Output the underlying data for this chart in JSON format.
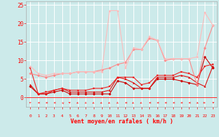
{
  "x": [
    0,
    1,
    2,
    3,
    4,
    5,
    6,
    7,
    8,
    9,
    10,
    11,
    12,
    13,
    14,
    15,
    16,
    17,
    18,
    19,
    20,
    21,
    22,
    23
  ],
  "series": [
    {
      "y": [
        3.0,
        1.0,
        1.0,
        1.5,
        2.0,
        1.0,
        1.0,
        1.0,
        1.0,
        1.0,
        1.0,
        4.5,
        4.0,
        2.5,
        2.5,
        2.5,
        5.0,
        5.0,
        5.0,
        4.5,
        4.0,
        3.5,
        11.0,
        8.0
      ],
      "color": "#cc0000",
      "lw": 0.8,
      "marker": "D",
      "ms": 1.8
    },
    {
      "y": [
        3.5,
        1.0,
        1.0,
        2.0,
        2.5,
        1.5,
        1.5,
        1.5,
        1.5,
        1.5,
        2.0,
        5.5,
        5.0,
        4.0,
        2.5,
        2.5,
        5.5,
        5.5,
        5.5,
        6.0,
        5.5,
        4.0,
        3.0,
        8.5
      ],
      "color": "#dd1111",
      "lw": 0.8,
      "marker": "^",
      "ms": 1.8
    },
    {
      "y": [
        8.0,
        1.0,
        1.5,
        2.0,
        2.5,
        2.0,
        2.0,
        2.0,
        2.5,
        2.5,
        3.0,
        5.5,
        5.5,
        5.5,
        3.5,
        4.0,
        6.0,
        6.0,
        6.0,
        7.0,
        6.5,
        5.5,
        8.5,
        9.0
      ],
      "color": "#ee2222",
      "lw": 0.8,
      "marker": "s",
      "ms": 1.8
    },
    {
      "y": [
        6.5,
        6.0,
        5.5,
        6.0,
        6.5,
        6.5,
        7.0,
        7.0,
        7.0,
        7.5,
        8.0,
        9.0,
        9.5,
        13.0,
        13.0,
        16.0,
        15.5,
        10.0,
        10.5,
        10.5,
        10.5,
        3.5,
        13.5,
        19.5
      ],
      "color": "#ff8888",
      "lw": 0.8,
      "marker": "D",
      "ms": 1.8
    },
    {
      "y": [
        8.5,
        6.5,
        6.0,
        6.5,
        6.5,
        6.5,
        7.0,
        7.0,
        7.0,
        7.0,
        23.5,
        23.5,
        8.0,
        13.5,
        13.0,
        16.5,
        15.5,
        10.5,
        10.5,
        10.5,
        10.5,
        11.0,
        23.0,
        19.5
      ],
      "color": "#ffbbbb",
      "lw": 0.8,
      "marker": "D",
      "ms": 1.5
    }
  ],
  "xlabel": "Vent moyen/en rafales ( km/h )",
  "xlim": [
    -0.5,
    23.5
  ],
  "ylim": [
    -2.5,
    26
  ],
  "yticks": [
    0,
    5,
    10,
    15,
    20,
    25
  ],
  "xticks": [
    0,
    1,
    2,
    3,
    4,
    5,
    6,
    7,
    8,
    9,
    10,
    11,
    12,
    13,
    14,
    15,
    16,
    17,
    18,
    19,
    20,
    21,
    22,
    23
  ],
  "bg_color": "#cceaea",
  "grid_color": "#b0d8d8",
  "tick_color": "#ff0000",
  "label_color": "#ff0000",
  "arrow_color": "#ff2222",
  "figsize": [
    3.2,
    2.0
  ],
  "dpi": 100
}
